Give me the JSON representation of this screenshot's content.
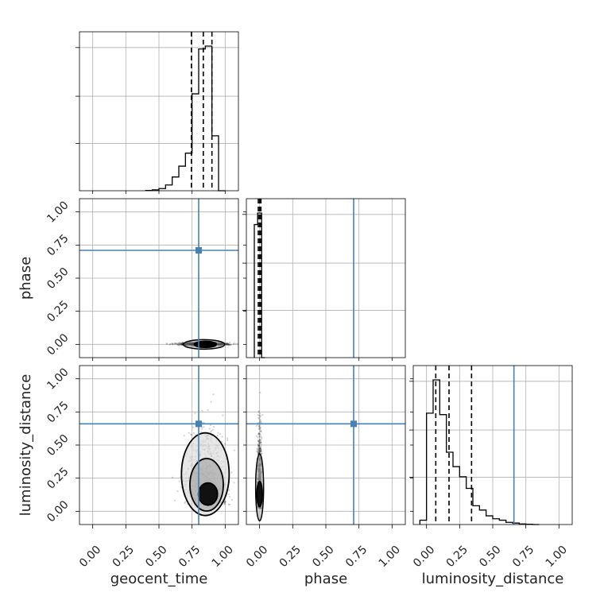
{
  "chart_data": {
    "type": "corner",
    "params": [
      "geocent_time",
      "phase",
      "luminosity_distance"
    ],
    "axis_labels": {
      "x": [
        "geocent_time",
        "phase",
        "luminosity_distance"
      ],
      "y": [
        "phase",
        "luminosity_distance"
      ]
    },
    "tick_labels": [
      "0.00",
      "0.25",
      "0.50",
      "0.75",
      "1.00"
    ],
    "lim": [
      -0.1,
      1.1
    ],
    "grid": true,
    "truths": [
      0.8,
      0.71,
      0.66
    ],
    "truth_color": "#4682b4",
    "hist_color": "#000000",
    "quantiles": [
      [
        0.745,
        0.835,
        0.9
      ],
      [
        -0.01,
        0.0,
        0.01
      ],
      [
        0.07,
        0.17,
        0.34
      ]
    ],
    "histograms": [
      {
        "edges": [
          0.4,
          0.45,
          0.5,
          0.55,
          0.6,
          0.65,
          0.7,
          0.75,
          0.8,
          0.85,
          0.9,
          0.95,
          1.0
        ],
        "values": [
          0.002,
          0.006,
          0.015,
          0.04,
          0.095,
          0.17,
          0.26,
          0.67,
          0.98,
          1.0,
          0.38,
          0.0
        ]
      },
      {
        "edges": [
          -0.04,
          -0.015,
          0.015,
          0.04
        ],
        "values": [
          0.92,
          1.0,
          0.0
        ]
      },
      {
        "edges": [
          -0.05,
          0.0,
          0.05,
          0.1,
          0.15,
          0.2,
          0.25,
          0.3,
          0.35,
          0.4,
          0.45,
          0.5,
          0.55,
          0.6,
          0.65,
          0.7,
          0.75,
          0.8,
          0.85
        ],
        "values": [
          0.03,
          0.77,
          1.0,
          0.76,
          0.5,
          0.4,
          0.33,
          0.25,
          0.13,
          0.1,
          0.06,
          0.04,
          0.03,
          0.015,
          0.01,
          0.004,
          0.002,
          0.0
        ]
      }
    ]
  }
}
